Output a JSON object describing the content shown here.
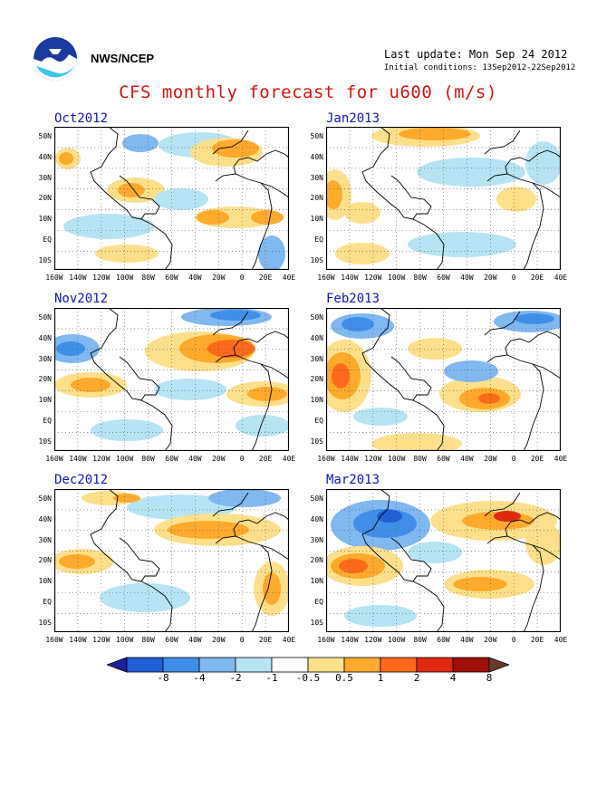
{
  "header": {
    "org": "NWS/NCEP",
    "last_update": "Last update: Mon Sep 24 2012",
    "initial_conditions": "Initial conditions: 13Sep2012-22Sep2012",
    "title": "CFS monthly forecast for u600 (m/s)"
  },
  "logo": {
    "icon": "noaa-logo-icon"
  },
  "axes": {
    "y_ticks": [
      "50N",
      "40N",
      "30N",
      "20N",
      "10N",
      "EQ",
      "10S"
    ],
    "x_ticks": [
      "160W",
      "140W",
      "120W",
      "100W",
      "80W",
      "60W",
      "40W",
      "20W",
      "0",
      "20E",
      "40E"
    ]
  },
  "panels": [
    {
      "label": "Oct2012"
    },
    {
      "label": "Jan2013"
    },
    {
      "label": "Nov2012"
    },
    {
      "label": "Feb2013"
    },
    {
      "label": "Dec2012"
    },
    {
      "label": "Mar2013"
    }
  ],
  "colorbar": {
    "labels": [
      "-8",
      "-4",
      "-2",
      "-1",
      "-0.5",
      "0.5",
      "1",
      "2",
      "4",
      "8"
    ],
    "colors": [
      "#1e1ea0",
      "#1f5fd6",
      "#3f8fe8",
      "#80b8f0",
      "#b6e4f4",
      "#ffffff",
      "#ffe08a",
      "#ffaa2a",
      "#ff6a1a",
      "#e02a10",
      "#a01008",
      "#6a3a2a"
    ]
  }
}
